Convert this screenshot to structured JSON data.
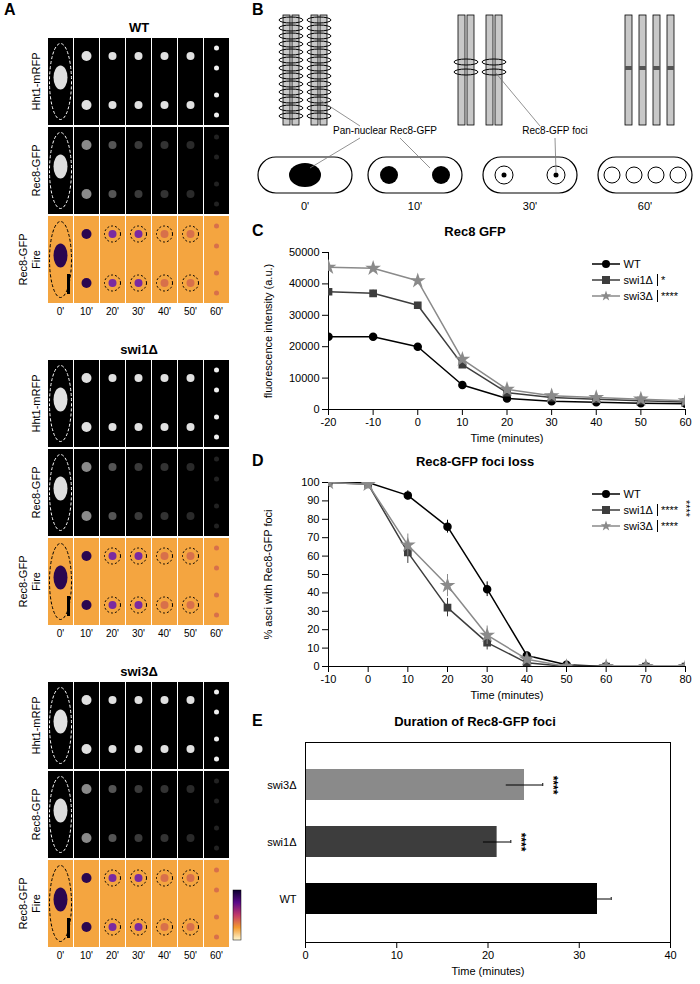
{
  "panel_a": {
    "letter": "A",
    "groups": [
      "WT",
      "swi1Δ",
      "swi3Δ"
    ],
    "rows": [
      [
        "Hht1-mRFP"
      ],
      [
        "Rec8-GFP"
      ],
      [
        "Rec8-GFP",
        "Fire"
      ]
    ],
    "times": [
      "0'",
      "10'",
      "20'",
      "30'",
      "40'",
      "50'",
      "60'"
    ]
  },
  "panel_b": {
    "letter": "B",
    "labels": [
      "Pan-nuclear Rec8-GFP",
      "Rec8-GFP foci"
    ],
    "times": [
      "0'",
      "10'",
      "30'",
      "60'"
    ]
  },
  "chart_data": [
    {
      "panel": "C",
      "type": "line",
      "title": "Rec8 GFP",
      "x_label": "Time (minutes)",
      "y_label": "fluorescence intensity (a.u.)",
      "x": [
        -20,
        -10,
        0,
        10,
        20,
        30,
        40,
        50,
        60
      ],
      "xlim": [
        -20,
        60
      ],
      "xticks": [
        -20,
        -10,
        0,
        10,
        20,
        30,
        40,
        50,
        60
      ],
      "ylim": [
        0,
        50000
      ],
      "yticks": [
        0,
        10000,
        20000,
        30000,
        40000,
        50000
      ],
      "grid": false,
      "legend": "top-right",
      "series": [
        {
          "name": "WT",
          "color": "#000000",
          "marker": "circle",
          "values": [
            23200,
            23200,
            20000,
            7800,
            3500,
            2600,
            2300,
            2000,
            1800
          ],
          "errors": [
            600,
            600,
            500,
            400,
            300,
            200,
            200,
            200,
            200
          ]
        },
        {
          "name": "swi1Δ",
          "color": "#3d3d3d",
          "marker": "square",
          "annotation": "*",
          "values": [
            37500,
            37000,
            33200,
            14300,
            5400,
            3800,
            3300,
            2800,
            2400
          ],
          "errors": [
            1000,
            1000,
            900,
            800,
            400,
            300,
            300,
            200,
            200
          ]
        },
        {
          "name": "swi3Δ",
          "color": "#8a8a8a",
          "marker": "star",
          "annotation": "****",
          "values": [
            45300,
            45000,
            41000,
            16000,
            6400,
            4400,
            3800,
            3300,
            2800
          ],
          "errors": [
            1200,
            1200,
            1000,
            900,
            500,
            400,
            300,
            300,
            300
          ]
        }
      ]
    },
    {
      "panel": "D",
      "type": "line",
      "title": "Rec8-GFP foci loss",
      "x_label": "Time (minutes)",
      "y_label": "% asci with Rec8-GFP foci",
      "x": [
        -10,
        0,
        10,
        20,
        30,
        40,
        50,
        60,
        70,
        80
      ],
      "xlim": [
        -10,
        80
      ],
      "xticks": [
        -10,
        0,
        10,
        20,
        30,
        40,
        50,
        60,
        70,
        80
      ],
      "ylim": [
        0,
        100
      ],
      "yticks": [
        0,
        10,
        20,
        30,
        40,
        50,
        60,
        70,
        80,
        90,
        100
      ],
      "grid": false,
      "legend": "top-right",
      "annotations": [
        "****"
      ],
      "series": [
        {
          "name": "WT",
          "color": "#000000",
          "marker": "circle",
          "values": [
            100,
            100,
            93,
            76,
            42,
            6,
            1,
            0,
            0,
            0
          ],
          "errors": [
            0,
            0,
            2.5,
            3.5,
            4,
            2,
            0.5,
            0,
            0,
            0
          ]
        },
        {
          "name": "swi1Δ",
          "color": "#3d3d3d",
          "marker": "square",
          "annotation": "****",
          "values": [
            100,
            99,
            62,
            32,
            13,
            2,
            0,
            0,
            0,
            0
          ],
          "errors": [
            0,
            0.5,
            6,
            5,
            4,
            1,
            0,
            0,
            0,
            0
          ]
        },
        {
          "name": "swi3Δ",
          "color": "#8a8a8a",
          "marker": "star",
          "annotation": "****",
          "values": [
            100,
            99,
            66,
            44,
            17,
            4,
            0,
            0,
            0,
            0
          ],
          "errors": [
            0,
            0.5,
            6,
            6,
            5,
            2,
            0,
            0,
            0,
            0
          ]
        }
      ]
    },
    {
      "panel": "E",
      "type": "bar",
      "orientation": "horizontal",
      "title": "Duration of Rec8-GFP foci",
      "x_label": "Time (minutes)",
      "categories": [
        "swi3Δ",
        "swi1Δ",
        "WT"
      ],
      "values": [
        24,
        21,
        32
      ],
      "errors": [
        2,
        1.5,
        1.5
      ],
      "colors": [
        "#8a8a8a",
        "#3d3d3d",
        "#000000"
      ],
      "annotations": [
        "****",
        "****",
        null
      ],
      "xlim": [
        0,
        40
      ],
      "xticks": [
        0,
        10,
        20,
        30,
        40
      ],
      "grid": false
    }
  ]
}
